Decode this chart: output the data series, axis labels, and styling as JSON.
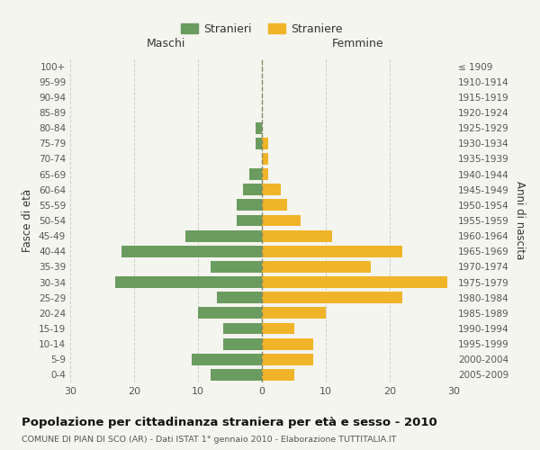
{
  "age_groups": [
    "0-4",
    "5-9",
    "10-14",
    "15-19",
    "20-24",
    "25-29",
    "30-34",
    "35-39",
    "40-44",
    "45-49",
    "50-54",
    "55-59",
    "60-64",
    "65-69",
    "70-74",
    "75-79",
    "80-84",
    "85-89",
    "90-94",
    "95-99",
    "100+"
  ],
  "birth_years": [
    "2005-2009",
    "2000-2004",
    "1995-1999",
    "1990-1994",
    "1985-1989",
    "1980-1984",
    "1975-1979",
    "1970-1974",
    "1965-1969",
    "1960-1964",
    "1955-1959",
    "1950-1954",
    "1945-1949",
    "1940-1944",
    "1935-1939",
    "1930-1934",
    "1925-1929",
    "1920-1924",
    "1915-1919",
    "1910-1914",
    "≤ 1909"
  ],
  "males": [
    8,
    11,
    6,
    6,
    10,
    7,
    23,
    8,
    22,
    12,
    4,
    4,
    3,
    2,
    0,
    1,
    1,
    0,
    0,
    0,
    0
  ],
  "females": [
    5,
    8,
    8,
    5,
    10,
    22,
    29,
    17,
    22,
    11,
    6,
    4,
    3,
    1,
    1,
    1,
    0,
    0,
    0,
    0,
    0
  ],
  "male_color": "#6a9c5f",
  "female_color": "#f0b429",
  "background_color": "#f5f5f0",
  "grid_color": "#cccccc",
  "title": "Popolazione per cittadinanza straniera per età e sesso - 2010",
  "subtitle": "COMUNE DI PIAN DI SCO (AR) - Dati ISTAT 1° gennaio 2010 - Elaborazione TUTTITALIA.IT",
  "xlabel_left": "Maschi",
  "xlabel_right": "Femmine",
  "ylabel_left": "Fasce di età",
  "ylabel_right": "Anni di nascita",
  "legend_stranieri": "Stranieri",
  "legend_straniere": "Straniere",
  "xlim": 30,
  "dpi": 100,
  "figsize": [
    6.0,
    5.0
  ]
}
